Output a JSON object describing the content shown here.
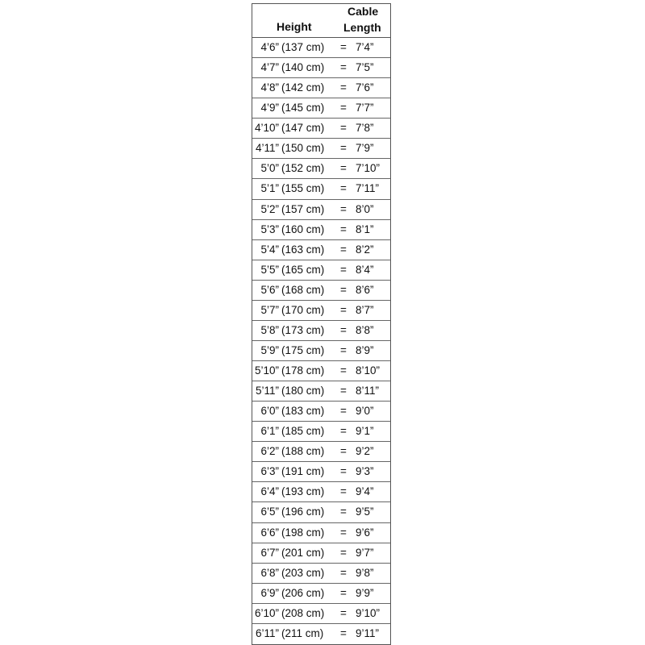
{
  "header": {
    "height": "Height",
    "cable_line1": "Cable",
    "cable_line2": "Length"
  },
  "rows": [
    {
      "ft": "4’6”",
      "cm": "(137 cm)",
      "eq": "=",
      "cable": "7’4”"
    },
    {
      "ft": "4’7”",
      "cm": "(140 cm)",
      "eq": "=",
      "cable": "7’5”"
    },
    {
      "ft": "4’8”",
      "cm": "(142 cm)",
      "eq": "=",
      "cable": "7’6”"
    },
    {
      "ft": "4’9”",
      "cm": "(145 cm)",
      "eq": "=",
      "cable": "7’7”"
    },
    {
      "ft": "4’10”",
      "cm": "(147 cm)",
      "eq": "=",
      "cable": "7’8”"
    },
    {
      "ft": "4’11”",
      "cm": "(150 cm)",
      "eq": "=",
      "cable": "7’9”"
    },
    {
      "ft": "5’0”",
      "cm": "(152 cm)",
      "eq": "=",
      "cable": "7’10”"
    },
    {
      "ft": "5’1”",
      "cm": "(155 cm)",
      "eq": "=",
      "cable": "7’11”"
    },
    {
      "ft": "5’2”",
      "cm": "(157 cm)",
      "eq": "=",
      "cable": "8’0”"
    },
    {
      "ft": "5’3”",
      "cm": "(160 cm)",
      "eq": "=",
      "cable": "8’1”"
    },
    {
      "ft": "5’4”",
      "cm": "(163 cm)",
      "eq": "=",
      "cable": "8’2”"
    },
    {
      "ft": "5’5”",
      "cm": "(165 cm)",
      "eq": "=",
      "cable": "8’4”"
    },
    {
      "ft": "5’6”",
      "cm": "(168 cm)",
      "eq": "=",
      "cable": "8’6”"
    },
    {
      "ft": "5’7”",
      "cm": "(170 cm)",
      "eq": "=",
      "cable": "8’7”"
    },
    {
      "ft": "5’8”",
      "cm": "(173 cm)",
      "eq": "=",
      "cable": "8’8”"
    },
    {
      "ft": "5’9”",
      "cm": "(175 cm)",
      "eq": "=",
      "cable": "8’9”"
    },
    {
      "ft": "5’10”",
      "cm": "(178 cm)",
      "eq": "=",
      "cable": "8’10”"
    },
    {
      "ft": "5’11”",
      "cm": "(180 cm)",
      "eq": "=",
      "cable": "8’11”"
    },
    {
      "ft": "6’0”",
      "cm": "(183 cm)",
      "eq": "=",
      "cable": "9’0”"
    },
    {
      "ft": "6’1”",
      "cm": "(185 cm)",
      "eq": "=",
      "cable": "9’1”"
    },
    {
      "ft": "6’2”",
      "cm": "(188 cm)",
      "eq": "=",
      "cable": "9’2”"
    },
    {
      "ft": "6’3”",
      "cm": "(191 cm)",
      "eq": "=",
      "cable": "9’3”"
    },
    {
      "ft": "6’4”",
      "cm": "(193 cm)",
      "eq": "=",
      "cable": "9’4”"
    },
    {
      "ft": "6’5”",
      "cm": "(196 cm)",
      "eq": "=",
      "cable": "9’5”"
    },
    {
      "ft": "6’6”",
      "cm": "(198 cm)",
      "eq": "=",
      "cable": "9’6”"
    },
    {
      "ft": "6’7”",
      "cm": "(201 cm)",
      "eq": "=",
      "cable": "9’7”"
    },
    {
      "ft": "6’8”",
      "cm": "(203 cm)",
      "eq": "=",
      "cable": "9’8”"
    },
    {
      "ft": "6’9”",
      "cm": "(206 cm)",
      "eq": "=",
      "cable": "9’9”"
    },
    {
      "ft": "6’10”",
      "cm": "(208 cm)",
      "eq": "=",
      "cable": "9’10”"
    },
    {
      "ft": "6’11”",
      "cm": "(211 cm)",
      "eq": "=",
      "cable": "9’11”"
    }
  ]
}
